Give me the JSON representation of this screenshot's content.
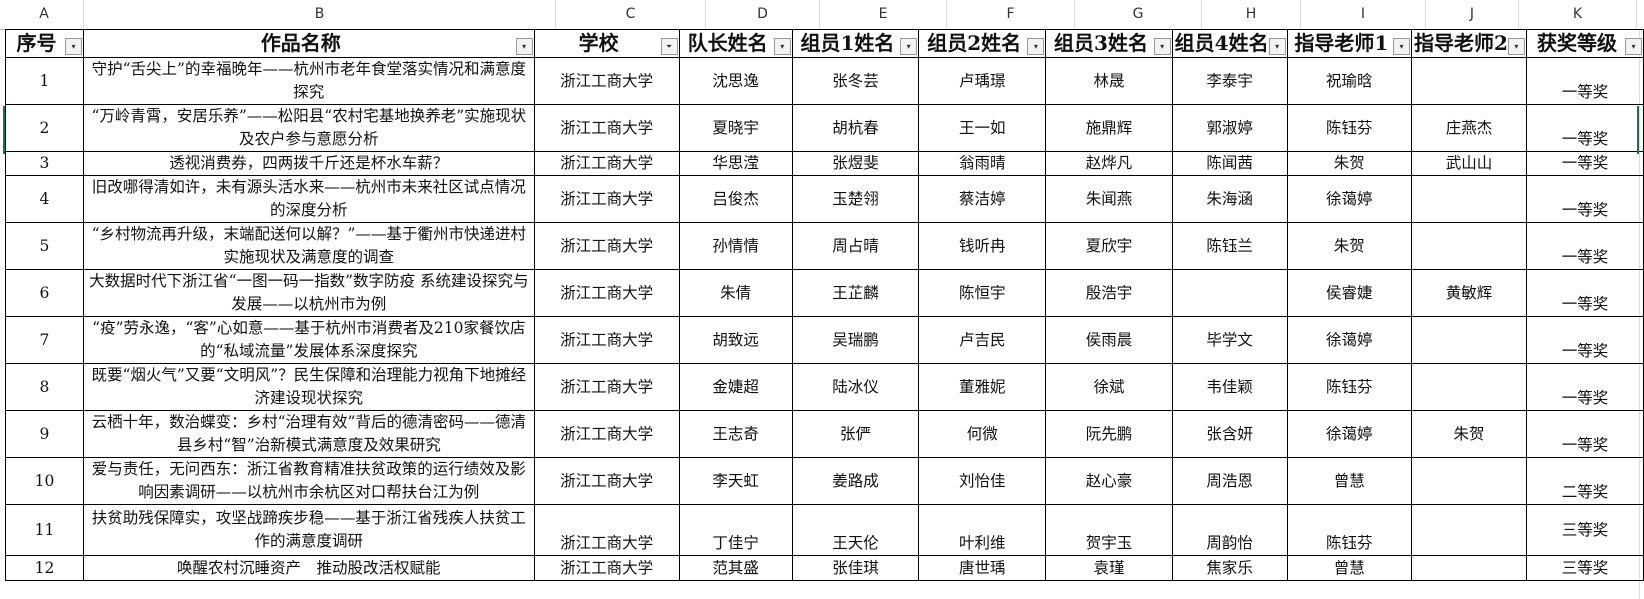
{
  "column_letters": [
    "A",
    "B",
    "C",
    "D",
    "E",
    "F",
    "G",
    "H",
    "I",
    "J",
    "K"
  ],
  "headers": [
    "序号",
    "作品名称",
    "学校",
    "队长姓名",
    "组员1姓名",
    "组员2姓名",
    "组员3姓名",
    "组员4姓名",
    "指导老师1",
    "指导老师2",
    "获奖等级"
  ],
  "filter_active_column": "学校",
  "rows": [
    [
      "1",
      "守护“舌尖上”的幸福晚年——杭州市老年食堂落实情况和满意度探究",
      "浙江工商大学",
      "沈思逸",
      "张冬芸",
      "卢瑀璟",
      "林晟",
      "李泰宇",
      "祝瑜晗",
      "",
      "一等奖"
    ],
    [
      "2",
      "“万岭青霄，安居乐养”——松阳县“农村宅基地换养老”实施现状及农户参与意愿分析",
      "浙江工商大学",
      "夏晓宇",
      "胡杭春",
      "王一如",
      "施鼎辉",
      "郭淑婷",
      "陈钰芬",
      "庄燕杰",
      "一等奖"
    ],
    [
      "3",
      "透视消费券，四两拨千斤还是杯水车薪？",
      "浙江工商大学",
      "华思滢",
      "张煜斐",
      "翁雨晴",
      "赵烨凡",
      "陈闻茜",
      "朱贺",
      "武山山",
      "一等奖"
    ],
    [
      "4",
      "旧改哪得清如许，未有源头活水来——杭州市未来社区试点情况的深度分析",
      "浙江工商大学",
      "吕俊杰",
      "玉楚翎",
      "蔡洁婷",
      "朱闻燕",
      "朱海涵",
      "徐蔼婷",
      "",
      "一等奖"
    ],
    [
      "5",
      "“乡村物流再升级，末端配送何以解？”——基于衢州市快递进村实施现状及满意度的调查",
      "浙江工商大学",
      "孙情情",
      "周占晴",
      "钱听冉",
      "夏欣宇",
      "陈钰兰",
      "朱贺",
      "",
      "一等奖"
    ],
    [
      "6",
      "大数据时代下浙江省“一图一码一指数”数字防疫 系统建设探究与发展——以杭州市为例",
      "浙江工商大学",
      "朱倩",
      "王芷麟",
      "陈恒宇",
      "殷浩宇",
      "",
      "侯睿婕",
      "黄敏辉",
      "一等奖"
    ],
    [
      "7",
      "“疫”劳永逸，“客”心如意——基于杭州市消费者及210家餐饮店的“私域流量”发展体系深度探究",
      "浙江工商大学",
      "胡致远",
      "吴瑞鹏",
      "卢吉民",
      "侯雨晨",
      "毕学文",
      "徐蔼婷",
      "",
      "一等奖"
    ],
    [
      "8",
      "既要“烟火气”又要“文明风”？民生保障和治理能力视角下地摊经济建设现状探究",
      "浙江工商大学",
      "金婕超",
      "陆冰仪",
      "董雅妮",
      "徐斌",
      "韦佳颖",
      "陈钰芬",
      "",
      "一等奖"
    ],
    [
      "9",
      "云栖十年，数治蝶变：乡村“治理有效”背后的德清密码——德清县乡村“智”治新模式满意度及效果研究",
      "浙江工商大学",
      "王志奇",
      "张俨",
      "何微",
      "阮先鹏",
      "张含妍",
      "徐蔼婷",
      "朱贺",
      "一等奖"
    ],
    [
      "10",
      "爱与责任，无问西东：浙江省教育精准扶贫政策的运行绩效及影响因素调研——以杭州市余杭区对口帮扶台江为例",
      "浙江工商大学",
      "李天虹",
      "姜路成",
      "刘怡佳",
      "赵心豪",
      "周浩恩",
      "曾慧",
      "",
      "二等奖"
    ],
    [
      "11",
      "扶贫助残保障实，攻坚战蹄疾步稳——基于浙江省残疾人扶贫工作的满意度调研",
      "浙江工商大学",
      "丁佳宁",
      "王天伦",
      "叶利维",
      "贺宇玉",
      "周韵怡",
      "陈钰芬",
      "",
      "三等奖"
    ],
    [
      "12",
      "唤醒农村沉睡资产　推动股改活权赋能",
      "浙江工商大学",
      "范其盛",
      "张佳琪",
      "唐世瑀",
      "袁瑾",
      "焦家乐",
      "曾慧",
      "",
      "三等奖"
    ]
  ]
}
